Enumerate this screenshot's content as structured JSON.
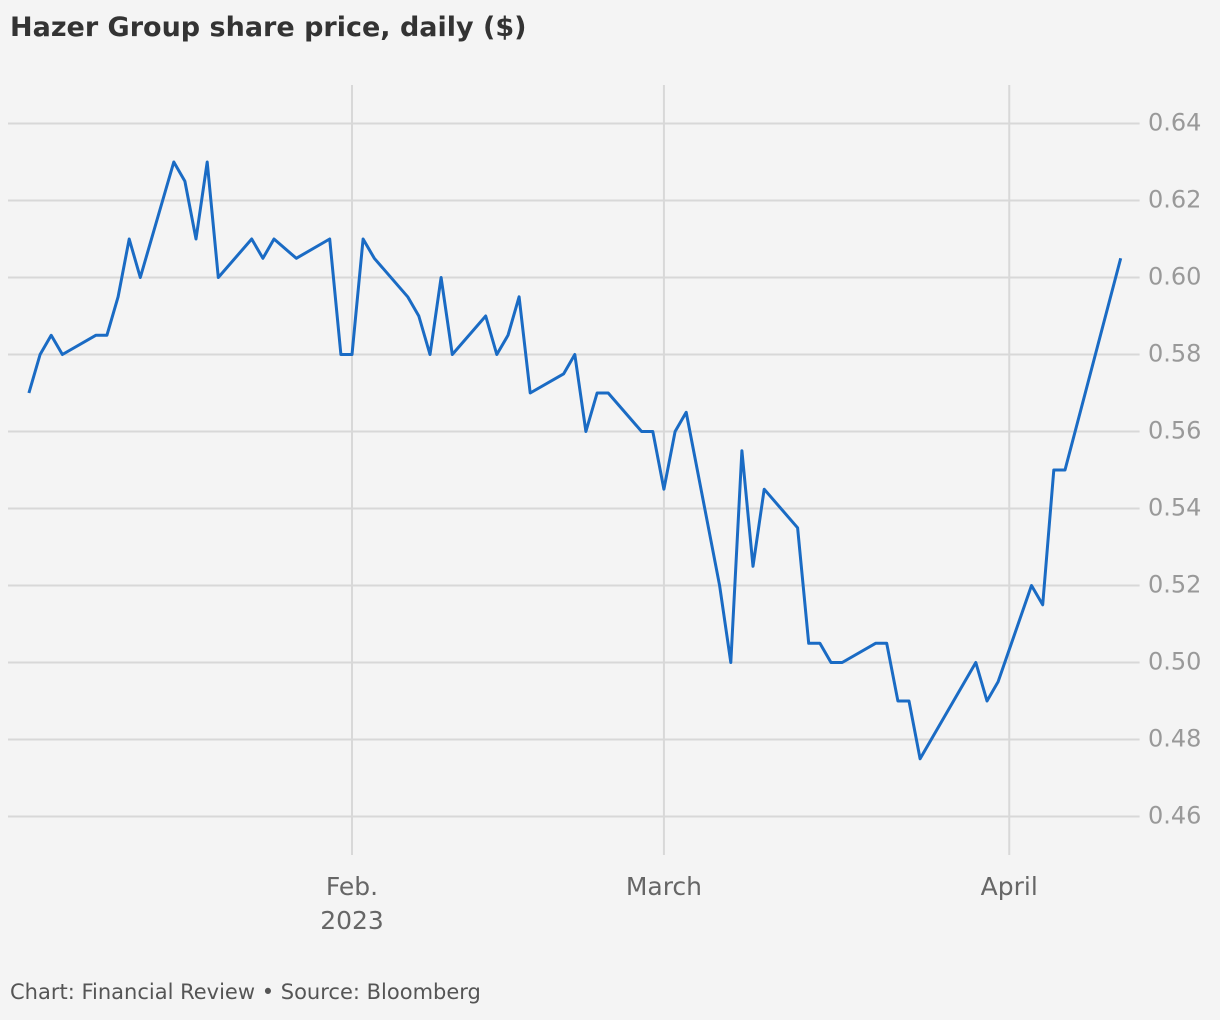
{
  "chart_data": {
    "type": "line",
    "title": "Hazer Group share price, daily ($)",
    "source": "Chart: Financial Review • Source: Bloomberg",
    "x": [
      3,
      4,
      5,
      6,
      9,
      10,
      11,
      12,
      13,
      16,
      17,
      18,
      19,
      20,
      23,
      24,
      25,
      27,
      30,
      31,
      32,
      33,
      34,
      37,
      38,
      39,
      40,
      41,
      44,
      45,
      46,
      47,
      48,
      51,
      52,
      53,
      54,
      55,
      58,
      59,
      60,
      61,
      62,
      65,
      66,
      67,
      68,
      69,
      72,
      73,
      74,
      75,
      76,
      79,
      80,
      81,
      82,
      83,
      88,
      89,
      90,
      93,
      94,
      95,
      96,
      101
    ],
    "series": [
      {
        "name": "Hazer Group",
        "color": "#1a6bc4",
        "values": [
          0.57,
          0.58,
          0.585,
          0.58,
          0.585,
          0.585,
          0.595,
          0.61,
          0.6,
          0.63,
          0.625,
          0.61,
          0.63,
          0.6,
          0.61,
          0.605,
          0.61,
          0.605,
          0.61,
          0.58,
          0.58,
          0.61,
          0.605,
          0.595,
          0.59,
          0.58,
          0.6,
          0.58,
          0.59,
          0.58,
          0.585,
          0.595,
          0.57,
          0.575,
          0.58,
          0.56,
          0.57,
          0.57,
          0.56,
          0.56,
          0.545,
          0.56,
          0.565,
          0.52,
          0.5,
          0.555,
          0.525,
          0.545,
          0.535,
          0.505,
          0.505,
          0.5,
          0.5,
          0.505,
          0.505,
          0.49,
          0.49,
          0.475,
          0.5,
          0.49,
          0.495,
          0.52,
          0.515,
          0.55,
          0.55,
          0.605
        ]
      }
    ],
    "xlim": [
      0.5,
      102.7
    ],
    "xticks": [
      {
        "value": 32,
        "label": "Feb.\n2023"
      },
      {
        "value": 60,
        "label": "March"
      },
      {
        "value": 91,
        "label": "April"
      }
    ],
    "ylim": [
      0.45,
      0.65
    ],
    "yticks": [
      0.46,
      0.48,
      {
        "value": 0.5,
        "label": "0.50"
      },
      0.52,
      0.54,
      0.56,
      0.58,
      {
        "value": 0.6,
        "label": "0.60"
      },
      0.62,
      0.64
    ],
    "grid": true
  }
}
